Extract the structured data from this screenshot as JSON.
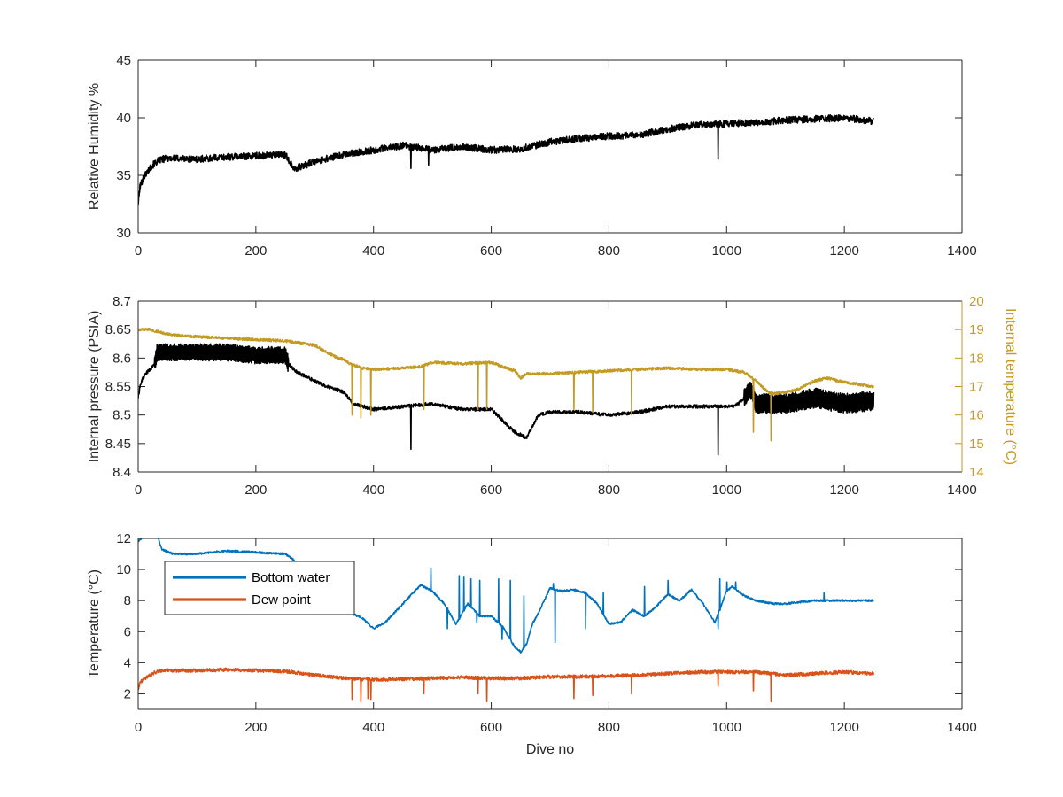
{
  "figure": {
    "background": "#ffffff",
    "axis_color": "#262626",
    "shared_x": {
      "label": "Dive no",
      "range": [
        0,
        1400
      ],
      "ticks": [
        0,
        200,
        400,
        600,
        800,
        1000,
        1200,
        1400
      ]
    }
  },
  "chart_data": [
    {
      "type": "line",
      "ylabel": "Relative Humidity %",
      "xlim": [
        0,
        1400
      ],
      "ylim": [
        30,
        45
      ],
      "x_ticks": [
        0,
        200,
        400,
        600,
        800,
        1000,
        1200,
        1400
      ],
      "y_ticks": [
        30,
        35,
        40,
        45
      ],
      "grid": false,
      "series": [
        {
          "color": "#000000",
          "noise": 0.3,
          "x": [
            0,
            3,
            8,
            15,
            25,
            35,
            50,
            100,
            150,
            200,
            250,
            265,
            280,
            300,
            350,
            400,
            450,
            500,
            550,
            600,
            650,
            700,
            750,
            800,
            850,
            900,
            950,
            1000,
            1050,
            1100,
            1150,
            1200,
            1250
          ],
          "y": [
            32.5,
            34.0,
            34.7,
            35.3,
            35.9,
            36.3,
            36.5,
            36.4,
            36.6,
            36.7,
            36.8,
            35.6,
            35.8,
            36.2,
            36.8,
            37.2,
            37.6,
            37.2,
            37.5,
            37.2,
            37.3,
            37.9,
            38.2,
            38.4,
            38.5,
            39.0,
            39.4,
            39.5,
            39.6,
            39.8,
            39.9,
            40.0,
            39.7
          ],
          "dips": [
            [
              463,
              35.6
            ],
            [
              493,
              35.9
            ],
            [
              985,
              36.4
            ]
          ]
        }
      ]
    },
    {
      "type": "line",
      "ylabel": "Internal pressure (PSIA)",
      "y2label": "Internal temperature (°C)",
      "xlim": [
        0,
        1400
      ],
      "ylim": [
        8.4,
        8.7
      ],
      "y2lim": [
        14,
        20
      ],
      "x_ticks": [
        0,
        200,
        400,
        600,
        800,
        1000,
        1200,
        1400
      ],
      "y_ticks": [
        8.4,
        8.45,
        8.5,
        8.55,
        8.6,
        8.65,
        8.7
      ],
      "y2_ticks": [
        14,
        15,
        16,
        17,
        18,
        19,
        20
      ],
      "y2_color": "#c39a23",
      "grid": false,
      "series": [
        {
          "axis": "left",
          "color": "#000000",
          "noise": 0.003,
          "x": [
            0,
            3,
            8,
            15,
            25,
            28,
            32,
            50,
            100,
            150,
            200,
            250,
            255,
            270,
            300,
            320,
            350,
            365,
            400,
            450,
            500,
            550,
            600,
            620,
            640,
            660,
            680,
            700,
            750,
            800,
            850,
            900,
            950,
            1000,
            1010,
            1020,
            1030,
            1040,
            1045,
            1050,
            1100,
            1150,
            1200,
            1250
          ],
          "y": [
            8.53,
            8.55,
            8.565,
            8.575,
            8.585,
            8.59,
            8.61,
            8.61,
            8.61,
            8.61,
            8.605,
            8.605,
            8.59,
            8.575,
            8.56,
            8.55,
            8.54,
            8.52,
            8.51,
            8.515,
            8.52,
            8.51,
            8.51,
            8.49,
            8.47,
            8.46,
            8.5,
            8.505,
            8.505,
            8.5,
            8.505,
            8.515,
            8.515,
            8.515,
            8.515,
            8.52,
            8.53,
            8.545,
            8.535,
            8.52,
            8.52,
            8.53,
            8.52,
            8.525
          ],
          "band": [
            [
              28,
              255,
              0.03
            ],
            [
              1030,
              1045,
              0.03
            ],
            [
              1045,
              1250,
              0.035
            ]
          ],
          "dips": [
            [
              463,
              8.44
            ],
            [
              985,
              8.43
            ]
          ]
        },
        {
          "axis": "right",
          "color": "#c39a23",
          "noise": 0.05,
          "x": [
            0,
            20,
            40,
            60,
            100,
            150,
            200,
            250,
            300,
            320,
            340,
            350,
            360,
            380,
            400,
            450,
            480,
            500,
            550,
            600,
            640,
            650,
            660,
            700,
            750,
            800,
            850,
            900,
            950,
            1000,
            1030,
            1050,
            1070,
            1080,
            1100,
            1120,
            1150,
            1170,
            1200,
            1250
          ],
          "y": [
            19.0,
            19.0,
            18.9,
            18.8,
            18.75,
            18.7,
            18.65,
            18.6,
            18.45,
            18.2,
            18.0,
            17.95,
            17.8,
            17.65,
            17.6,
            17.65,
            17.7,
            17.85,
            17.8,
            17.85,
            17.55,
            17.3,
            17.45,
            17.45,
            17.5,
            17.55,
            17.6,
            17.65,
            17.6,
            17.6,
            17.5,
            17.2,
            16.8,
            16.75,
            16.8,
            16.9,
            17.2,
            17.3,
            17.15,
            17.0
          ],
          "dips": [
            [
              363,
              16.0
            ],
            [
              378,
              15.9
            ],
            [
              395,
              16.0
            ],
            [
              485,
              16.2
            ],
            [
              577,
              16.2
            ],
            [
              592,
              16.2
            ],
            [
              740,
              16.2
            ],
            [
              772,
              16.1
            ],
            [
              838,
              16.0
            ],
            [
              1045,
              15.4
            ],
            [
              1075,
              15.1
            ]
          ]
        }
      ]
    },
    {
      "type": "line",
      "ylabel": "Temperature (°C)",
      "xlabel": "Dive no",
      "xlim": [
        0,
        1400
      ],
      "ylim": [
        1,
        12
      ],
      "x_ticks": [
        0,
        200,
        400,
        600,
        800,
        1000,
        1200,
        1400
      ],
      "y_ticks": [
        2,
        4,
        6,
        8,
        10,
        12
      ],
      "grid": false,
      "legend": "top-left",
      "series": [
        {
          "name": "Bottom water",
          "color": "#0072bd",
          "noise": 0.06,
          "x": [
            0,
            10,
            20,
            30,
            40,
            60,
            100,
            150,
            200,
            250,
            265,
            270,
            280,
            300,
            340,
            360,
            380,
            400,
            420,
            440,
            460,
            480,
            500,
            520,
            540,
            560,
            580,
            600,
            620,
            640,
            650,
            660,
            670,
            680,
            700,
            720,
            740,
            760,
            780,
            800,
            820,
            840,
            860,
            880,
            900,
            920,
            940,
            960,
            980,
            1000,
            1010,
            1030,
            1050,
            1080,
            1100,
            1150,
            1200,
            1250
          ],
          "y": [
            11.8,
            12.2,
            12.3,
            12.5,
            11.3,
            11.0,
            11.0,
            11.2,
            11.1,
            11.0,
            10.6,
            8.0,
            7.6,
            7.5,
            7.3,
            7.2,
            6.9,
            6.2,
            6.6,
            7.4,
            8.2,
            9.0,
            8.6,
            7.8,
            6.5,
            7.8,
            7.0,
            7.0,
            6.3,
            5.0,
            4.7,
            5.2,
            6.5,
            7.2,
            8.8,
            8.6,
            8.7,
            8.5,
            7.8,
            6.5,
            6.6,
            7.4,
            7.0,
            7.6,
            8.4,
            8.0,
            8.7,
            7.8,
            6.6,
            8.6,
            8.9,
            8.3,
            8.0,
            7.8,
            7.8,
            8.0,
            8.0,
            8.0
          ],
          "spikes": [
            [
              497,
              10.1
            ],
            [
              545,
              9.6
            ],
            [
              553,
              9.5
            ],
            [
              565,
              9.4
            ],
            [
              580,
              9.3
            ],
            [
              612,
              9.4
            ],
            [
              632,
              9.3
            ],
            [
              655,
              8.3
            ],
            [
              705,
              9.1
            ],
            [
              790,
              8.5
            ],
            [
              860,
              8.9
            ],
            [
              900,
              9.3
            ],
            [
              988,
              9.4
            ],
            [
              1000,
              9.2
            ],
            [
              1015,
              9.2
            ],
            [
              1165,
              8.5
            ]
          ],
          "dips": [
            [
              525,
              6.2
            ],
            [
              575,
              6.6
            ],
            [
              618,
              5.5
            ],
            [
              708,
              5.3
            ],
            [
              760,
              6.2
            ],
            [
              985,
              6.2
            ]
          ]
        },
        {
          "name": "Dew point",
          "color": "#d95319",
          "noise": 0.11,
          "x": [
            0,
            3,
            8,
            15,
            25,
            35,
            50,
            100,
            150,
            200,
            250,
            300,
            350,
            400,
            450,
            500,
            550,
            600,
            650,
            700,
            750,
            800,
            850,
            900,
            950,
            1000,
            1050,
            1100,
            1150,
            1200,
            1250
          ],
          "y": [
            2.3,
            2.7,
            2.9,
            3.1,
            3.3,
            3.5,
            3.5,
            3.5,
            3.55,
            3.5,
            3.45,
            3.2,
            3.0,
            2.9,
            2.95,
            3.0,
            3.05,
            3.0,
            3.0,
            3.1,
            3.1,
            3.15,
            3.2,
            3.3,
            3.4,
            3.4,
            3.4,
            3.2,
            3.3,
            3.4,
            3.3
          ],
          "dips": [
            [
              363,
              1.6
            ],
            [
              378,
              1.5
            ],
            [
              390,
              1.7
            ],
            [
              395,
              1.6
            ],
            [
              485,
              2.0
            ],
            [
              577,
              2.0
            ],
            [
              592,
              1.5
            ],
            [
              740,
              1.7
            ],
            [
              772,
              1.9
            ],
            [
              838,
              2.0
            ],
            [
              985,
              2.5
            ],
            [
              1045,
              2.2
            ],
            [
              1075,
              1.5
            ]
          ]
        }
      ]
    }
  ]
}
